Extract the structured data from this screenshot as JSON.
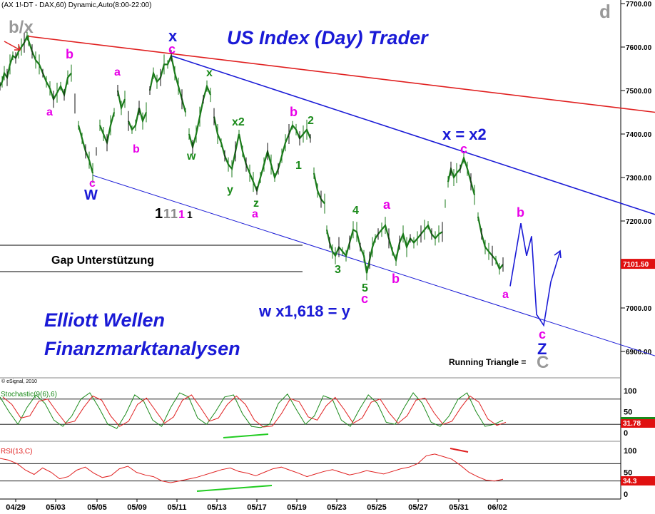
{
  "header": {
    "symbol": "(AX 1!-DT - DAX,60) Dynamic,Auto(8:00-22:00)",
    "title": "US Index (Day) Trader",
    "corner_label": "d",
    "copyright": "© eSignal, 2010"
  },
  "texts": {
    "gap": "Gap Unterstützung",
    "elliott1": "Elliott Wellen",
    "elliott2": "Finanzmarktanalysen",
    "fib": "w x1,618 = y",
    "xeq": "x = x2",
    "running": "Running Triangle =",
    "running_c": "C",
    "bx": "b/x",
    "count": [
      "1",
      "1",
      "1",
      "1",
      "1"
    ]
  },
  "wave_labels": [
    {
      "t": "b",
      "c": "#e800e8"
    },
    {
      "t": "a",
      "c": "#e800e8"
    },
    {
      "t": "a",
      "c": "#e800e8"
    },
    {
      "t": "b",
      "c": "#e800e8"
    },
    {
      "t": "c",
      "c": "#e800e8"
    },
    {
      "t": "W",
      "c": "#1a1ad6"
    },
    {
      "t": "x",
      "c": "#1a1ad6"
    },
    {
      "t": "c",
      "c": "#e800e8"
    },
    {
      "t": "x",
      "c": "#1a8a1a"
    },
    {
      "t": "w",
      "c": "#1a8a1a"
    },
    {
      "t": "x2",
      "c": "#1a8a1a"
    },
    {
      "t": "y",
      "c": "#1a8a1a"
    },
    {
      "t": "z",
      "c": "#1a8a1a"
    },
    {
      "t": "a",
      "c": "#e800e8"
    },
    {
      "t": "b",
      "c": "#e800e8"
    },
    {
      "t": "2",
      "c": "#1a8a1a"
    },
    {
      "t": "1",
      "c": "#1a8a1a"
    },
    {
      "t": "4",
      "c": "#1a8a1a"
    },
    {
      "t": "a",
      "c": "#e800e8"
    },
    {
      "t": "3",
      "c": "#1a8a1a"
    },
    {
      "t": "5",
      "c": "#1a8a1a"
    },
    {
      "t": "c",
      "c": "#e800e8"
    },
    {
      "t": "b",
      "c": "#e800e8"
    },
    {
      "t": "c",
      "c": "#e800e8"
    },
    {
      "t": "b",
      "c": "#e800e8"
    },
    {
      "t": "a",
      "c": "#e800e8"
    },
    {
      "t": "c",
      "c": "#e800e8"
    },
    {
      "t": "Z",
      "c": "#1a1ad6"
    }
  ],
  "chart_data": {
    "type": "line",
    "instrument": "DAX",
    "price_axis": {
      "ticks": [
        "7700.00",
        "7600.00",
        "7500.00",
        "7400.00",
        "7300.00",
        "7200.00",
        "7100.00",
        "7000.00",
        "6900.00"
      ],
      "min": 6830,
      "max": 7730
    },
    "last_price": "7101.50",
    "x_tick_labels": [
      "04/29",
      "05/03",
      "05/05",
      "05/09",
      "05/11",
      "05/13",
      "05/17",
      "05/19",
      "05/23",
      "05/25",
      "05/27",
      "05/31",
      "06/02"
    ],
    "series": [
      {
        "name": "DAX",
        "values": [
          [
            0,
            7510
          ],
          [
            3,
            7520
          ],
          [
            6,
            7540
          ],
          [
            10,
            7530
          ],
          [
            14,
            7560
          ],
          [
            18,
            7580
          ],
          [
            22,
            7575
          ],
          [
            26,
            7590
          ],
          [
            30,
            7600
          ],
          [
            34,
            7610
          ],
          [
            38,
            7625
          ],
          [
            40,
            7615
          ],
          [
            45,
            7590
          ],
          [
            50,
            7570
          ],
          [
            55,
            7560
          ],
          [
            60,
            7540
          ],
          [
            65,
            7520
          ],
          [
            70,
            7505
          ],
          [
            75,
            7480
          ],
          [
            80,
            7495
          ],
          [
            85,
            7510
          ],
          [
            90,
            7490
          ],
          [
            95,
            7530
          ],
          [
            100,
            7540
          ],
          [
            105,
            7470
          ],
          [
            110,
            7420
          ],
          [
            115,
            7390
          ],
          [
            120,
            7360
          ],
          [
            125,
            7340
          ],
          [
            130,
            7310
          ],
          [
            135,
            7360
          ],
          [
            140,
            7420
          ],
          [
            145,
            7400
          ],
          [
            150,
            7380
          ],
          [
            155,
            7420
          ],
          [
            160,
            7450
          ],
          [
            165,
            7500
          ],
          [
            170,
            7460
          ],
          [
            175,
            7480
          ],
          [
            180,
            7430
          ],
          [
            185,
            7410
          ],
          [
            190,
            7420
          ],
          [
            195,
            7460
          ],
          [
            200,
            7430
          ],
          [
            205,
            7450
          ],
          [
            210,
            7500
          ],
          [
            215,
            7540
          ],
          [
            220,
            7520
          ],
          [
            225,
            7530
          ],
          [
            230,
            7560
          ],
          [
            235,
            7560
          ],
          [
            240,
            7580
          ],
          [
            245,
            7540
          ],
          [
            250,
            7510
          ],
          [
            255,
            7480
          ],
          [
            260,
            7450
          ],
          [
            265,
            7400
          ],
          [
            270,
            7370
          ],
          [
            275,
            7400
          ],
          [
            280,
            7440
          ],
          [
            285,
            7480
          ],
          [
            290,
            7510
          ],
          [
            295,
            7490
          ],
          [
            300,
            7440
          ],
          [
            305,
            7400
          ],
          [
            310,
            7380
          ],
          [
            315,
            7350
          ],
          [
            320,
            7330
          ],
          [
            325,
            7320
          ],
          [
            330,
            7360
          ],
          [
            335,
            7400
          ],
          [
            340,
            7360
          ],
          [
            345,
            7330
          ],
          [
            350,
            7310
          ],
          [
            355,
            7290
          ],
          [
            360,
            7270
          ],
          [
            365,
            7300
          ],
          [
            370,
            7330
          ],
          [
            375,
            7360
          ],
          [
            380,
            7330
          ],
          [
            385,
            7300
          ],
          [
            390,
            7320
          ],
          [
            395,
            7350
          ],
          [
            400,
            7380
          ],
          [
            405,
            7400
          ],
          [
            410,
            7420
          ],
          [
            415,
            7410
          ],
          [
            420,
            7390
          ],
          [
            425,
            7400
          ],
          [
            430,
            7410
          ],
          [
            435,
            7390
          ],
          [
            440,
            7310
          ],
          [
            445,
            7270
          ],
          [
            450,
            7250
          ],
          [
            455,
            7240
          ],
          [
            458,
            7180
          ],
          [
            462,
            7150
          ],
          [
            466,
            7130
          ],
          [
            470,
            7120
          ],
          [
            475,
            7140
          ],
          [
            480,
            7130
          ],
          [
            485,
            7120
          ],
          [
            490,
            7150
          ],
          [
            495,
            7180
          ],
          [
            500,
            7175
          ],
          [
            505,
            7140
          ],
          [
            510,
            7120
          ],
          [
            514,
            7080
          ],
          [
            518,
            7110
          ],
          [
            522,
            7140
          ],
          [
            526,
            7160
          ],
          [
            530,
            7170
          ],
          [
            535,
            7180
          ],
          [
            540,
            7190
          ],
          [
            545,
            7160
          ],
          [
            550,
            7130
          ],
          [
            555,
            7110
          ],
          [
            560,
            7150
          ],
          [
            565,
            7170
          ],
          [
            570,
            7140
          ],
          [
            575,
            7160
          ],
          [
            580,
            7150
          ],
          [
            585,
            7160
          ],
          [
            590,
            7170
          ],
          [
            595,
            7180
          ],
          [
            600,
            7190
          ],
          [
            605,
            7170
          ],
          [
            610,
            7160
          ],
          [
            615,
            7170
          ],
          [
            620,
            7175
          ],
          [
            624,
            7240
          ],
          [
            628,
            7290
          ],
          [
            632,
            7320
          ],
          [
            636,
            7300
          ],
          [
            640,
            7310
          ],
          [
            645,
            7320
          ],
          [
            650,
            7345
          ],
          [
            655,
            7320
          ],
          [
            660,
            7290
          ],
          [
            665,
            7260
          ],
          [
            670,
            7210
          ],
          [
            675,
            7170
          ],
          [
            680,
            7140
          ],
          [
            685,
            7130
          ],
          [
            690,
            7120
          ],
          [
            695,
            7110
          ],
          [
            700,
            7090
          ],
          [
            705,
            7100
          ]
        ]
      }
    ],
    "projection": {
      "name": "projection",
      "values": [
        [
          715,
          7050
        ],
        [
          730,
          7195
        ],
        [
          738,
          7120
        ],
        [
          745,
          7165
        ],
        [
          752,
          6985
        ],
        [
          762,
          6960
        ],
        [
          772,
          7060
        ],
        [
          785,
          7130
        ]
      ]
    },
    "trendlines": [
      {
        "name": "red upper",
        "color": "#e02020",
        "from": [
          38,
          7625
        ],
        "to": [
          918,
          7450
        ]
      },
      {
        "name": "blue x-x2",
        "color": "#1a1ad6",
        "from": [
          240,
          7580
        ],
        "to": [
          918,
          7215
        ]
      },
      {
        "name": "blue lower",
        "color": "#1a1ad6",
        "from": [
          130,
          7305
        ],
        "to": [
          918,
          6890
        ]
      }
    ],
    "indicators": [
      {
        "name": "Stochastic(9(6),6)",
        "levels": [
          "100",
          "50",
          "0"
        ],
        "last": "31.78",
        "k": [
          85,
          50,
          20,
          60,
          90,
          70,
          30,
          15,
          40,
          80,
          95,
          60,
          20,
          10,
          45,
          90,
          75,
          30,
          15,
          60,
          95,
          85,
          35,
          20,
          50,
          85,
          90,
          45,
          15,
          12,
          20,
          70,
          92,
          55,
          20,
          40,
          88,
          80,
          30,
          15,
          55,
          90,
          70,
          25,
          20,
          60,
          95,
          70,
          25,
          15,
          40,
          80,
          95,
          50,
          15,
          20,
          30
        ]
      },
      {
        "name": "RSI(13,C)",
        "levels": [
          "100",
          "50",
          "0"
        ],
        "last": "34.3",
        "values": [
          82,
          78,
          70,
          55,
          45,
          60,
          50,
          35,
          40,
          55,
          62,
          48,
          38,
          42,
          58,
          64,
          50,
          44,
          40,
          30,
          26,
          30,
          34,
          38,
          44,
          50,
          56,
          60,
          52,
          48,
          42,
          50,
          58,
          62,
          55,
          48,
          40,
          46,
          52,
          56,
          50,
          44,
          48,
          54,
          50,
          46,
          52,
          58,
          62,
          70,
          88,
          92,
          86,
          80,
          66,
          50,
          40,
          32,
          30,
          34
        ]
      }
    ]
  }
}
